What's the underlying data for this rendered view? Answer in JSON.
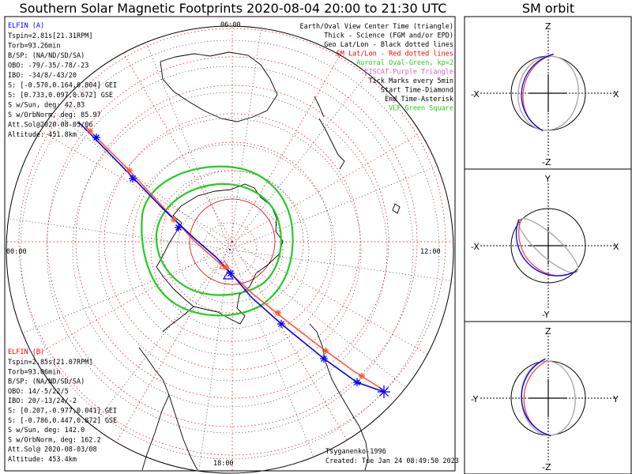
{
  "title": "Southern Solar Magnetic Footprints 2020-08-04 20:00 to 21:30 UTC",
  "sm_title": "SM orbit",
  "colors": {
    "ela": "#0000ff",
    "elb": "#ff0000",
    "trackA": "#0000ff",
    "trackB": "#ff5533",
    "oval": "#22cc22",
    "sm": "#dd0000"
  },
  "elfin_a": {
    "name": "ELFIN (A)",
    "lines": [
      "Tspin=2.81s[21.31RPM]",
      "Torb=93.26min",
      "B/SP: (NA/ND/SD/SA)",
      "OBO: -79/-35/-78/-23",
      "IBO: -34/8/-43/20",
      "S: [-0.570,0.164,0.804] GEI",
      "S: [0.733,0.097,0.672] GSE",
      "S w/Sun, deg: 42.83",
      "S w/OrbNorm, deg: 85.97",
      "Att.Sol@2020-08-05/06",
      "Altitude: 451.8km"
    ]
  },
  "elfin_b": {
    "name": "ELFIN (B)",
    "lines": [
      "Tspin=2.85s[21.07RPM]",
      "Torb=93.06min",
      "B/SP: (NA/ND/SD/SA)",
      "OBO: 14/-5/22/5",
      "IBO: 20/-13/24/-2",
      "S: [0.207,-0.977,0.041] GEI",
      "S: [-0.786,0.447,0.872] GSE",
      "S w/Sun, deg: 142.0",
      "S w/OrbNorm, deg: 162.2",
      "Att.Sol@ 2020-08-03/08",
      "Altitude: 453.4km"
    ]
  },
  "legend": [
    {
      "text": "Earth/Oval View Center Time (triangle)",
      "color": "#000000"
    },
    {
      "text": "Thick - Science (FGM and/or EPD)",
      "color": "#000000"
    },
    {
      "text": "Geo Lat/Lon - Black dotted lines",
      "color": "#000000"
    },
    {
      "text": "SM Lat/Lon - Red dotted lines",
      "color": "#ff0000"
    },
    {
      "text": "Auroral Oval-Green, kp=2",
      "color": "#22cc22"
    },
    {
      "text": "EISCAT-Purple Triangle",
      "color": "#cc66cc"
    },
    {
      "text": "Tick Marks every 5min",
      "color": "#000000"
    },
    {
      "text": "Start Time-Diamond",
      "color": "#000000"
    },
    {
      "text": "End Time-Asterisk",
      "color": "#000000"
    },
    {
      "text": "VLF-Green Square",
      "color": "#22cc22"
    }
  ],
  "mlt_labels": {
    "top": "06:00",
    "left": "00:00",
    "right": "12:00",
    "bottom": "18:00"
  },
  "credit": "Tsyganenko-1996",
  "created": "Created: Tue Jan 24 08:49:50 2023",
  "sm_panels": [
    {
      "vertical_top": "Z",
      "vertical_bottom": "-Z",
      "horiz_left": "-X",
      "horiz_right": "X"
    },
    {
      "vertical_top": "Y",
      "vertical_bottom": "-Y",
      "horiz_left": "-X",
      "horiz_right": "X"
    },
    {
      "vertical_top": "Z",
      "vertical_bottom": "-Z",
      "horiz_left": "-Y",
      "horiz_right": "Y"
    }
  ]
}
